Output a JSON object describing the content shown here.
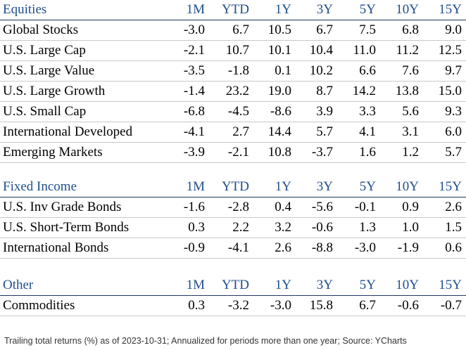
{
  "sections": [
    {
      "title": "Equities",
      "headers": [
        "1M",
        "YTD",
        "1Y",
        "3Y",
        "5Y",
        "10Y",
        "15Y"
      ],
      "rows": [
        {
          "name": "Global Stocks",
          "values": [
            "-3.0",
            "6.7",
            "10.5",
            "6.7",
            "7.5",
            "6.8",
            "9.0"
          ]
        },
        {
          "name": "U.S. Large Cap",
          "values": [
            "-2.1",
            "10.7",
            "10.1",
            "10.4",
            "11.0",
            "11.2",
            "12.5"
          ]
        },
        {
          "name": "U.S. Large Value",
          "values": [
            "-3.5",
            "-1.8",
            "0.1",
            "10.2",
            "6.6",
            "7.6",
            "9.7"
          ]
        },
        {
          "name": "U.S. Large Growth",
          "values": [
            "-1.4",
            "23.2",
            "19.0",
            "8.7",
            "14.2",
            "13.8",
            "15.0"
          ]
        },
        {
          "name": "U.S. Small Cap",
          "values": [
            "-6.8",
            "-4.5",
            "-8.6",
            "3.9",
            "3.3",
            "5.6",
            "9.3"
          ]
        },
        {
          "name": "International Developed",
          "values": [
            "-4.1",
            "2.7",
            "14.4",
            "5.7",
            "4.1",
            "3.1",
            "6.0"
          ]
        },
        {
          "name": "Emerging Markets",
          "values": [
            "-3.9",
            "-2.1",
            "10.8",
            "-3.7",
            "1.6",
            "1.2",
            "5.7"
          ]
        }
      ]
    },
    {
      "title": "Fixed Income",
      "headers": [
        "1M",
        "YTD",
        "1Y",
        "3Y",
        "5Y",
        "10Y",
        "15Y"
      ],
      "rows": [
        {
          "name": "U.S. Inv Grade Bonds",
          "values": [
            "-1.6",
            "-2.8",
            "0.4",
            "-5.6",
            "-0.1",
            "0.9",
            "2.6"
          ]
        },
        {
          "name": "U.S. Short-Term Bonds",
          "values": [
            "0.3",
            "2.2",
            "3.2",
            "-0.6",
            "1.3",
            "1.0",
            "1.5"
          ]
        },
        {
          "name": "International Bonds",
          "values": [
            "-0.9",
            "-4.1",
            "2.6",
            "-8.8",
            "-3.0",
            "-1.9",
            "0.6"
          ]
        }
      ]
    },
    {
      "title": "Other",
      "headers": [
        "1M",
        "YTD",
        "1Y",
        "3Y",
        "5Y",
        "10Y",
        "15Y"
      ],
      "rows": [
        {
          "name": "Commodities",
          "values": [
            "0.3",
            "-3.2",
            "-3.0",
            "15.8",
            "6.7",
            "-0.6",
            "-0.7"
          ]
        }
      ]
    }
  ],
  "footer": "Trailing total returns (%) as of 2023-10-31; Annualized for periods more than one year; Source: YCharts",
  "colors": {
    "header_text": "#1f4e8c",
    "header_rule": "#1f3864",
    "row_rule": "#c8c8c8"
  }
}
